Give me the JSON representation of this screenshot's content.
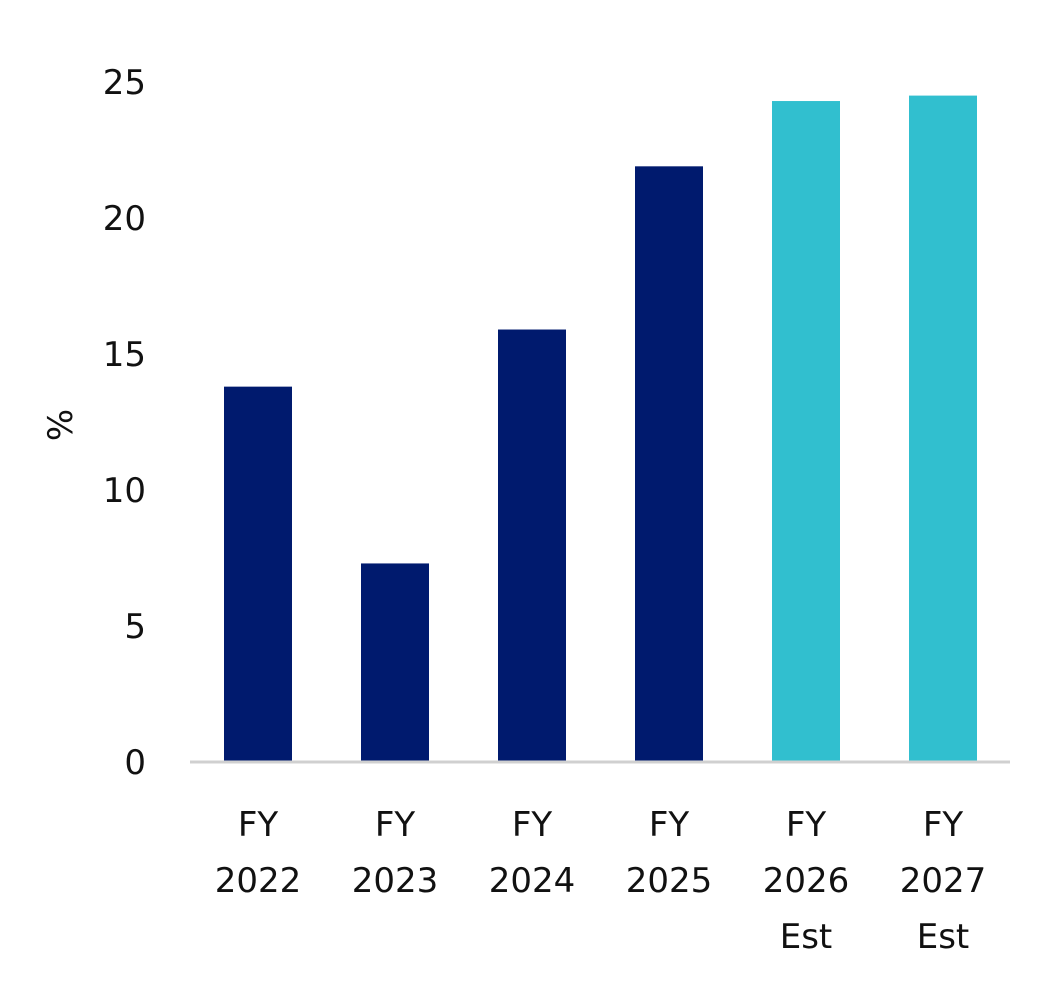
{
  "chart_data": {
    "type": "bar",
    "title": "",
    "xlabel": "",
    "ylabel": "%",
    "ylim": [
      0,
      25
    ],
    "yticks": [
      "0",
      "5",
      "10",
      "15",
      "20",
      "25"
    ],
    "grid": false,
    "categories": [
      [
        "FY",
        "2022"
      ],
      [
        "FY",
        "2023"
      ],
      [
        "FY",
        "2024"
      ],
      [
        "FY",
        "2025"
      ],
      [
        "FY",
        "2026",
        "Est"
      ],
      [
        "FY",
        "2027",
        "Est"
      ]
    ],
    "values": [
      13.8,
      7.3,
      15.9,
      21.9,
      24.3,
      24.5
    ],
    "colors": {
      "actual": "#001A6E",
      "estimate": "#31BFCF",
      "axis": "#D0D0D0"
    },
    "bar_kind": [
      "actual",
      "actual",
      "actual",
      "actual",
      "estimate",
      "estimate"
    ]
  }
}
